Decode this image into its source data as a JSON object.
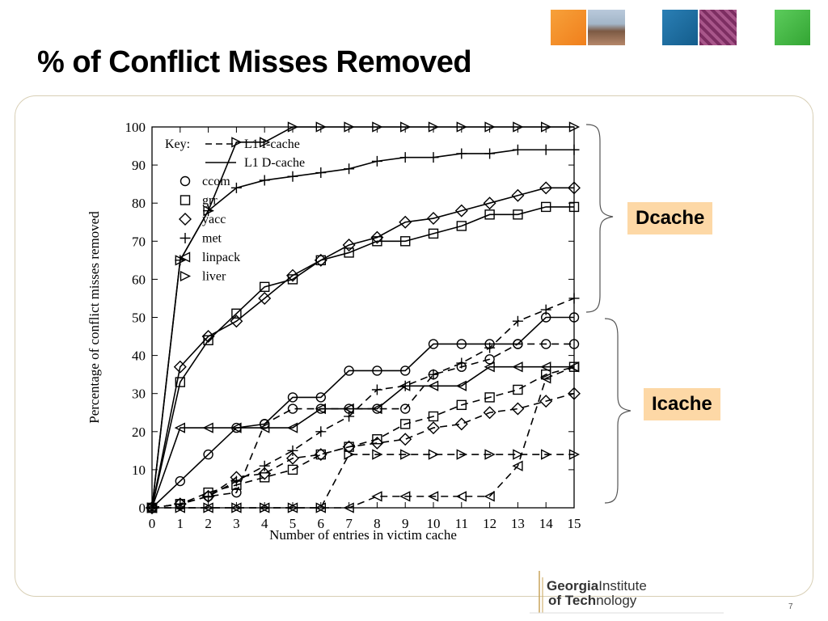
{
  "slide": {
    "title": "% of Conflict Misses Removed",
    "dcache_label": "Dcache",
    "icache_label": "Icache",
    "page_number": "7",
    "logo": {
      "line1_bold": "Georgia",
      "line1_light": "Institute",
      "line2_bold": "of Tech",
      "line2_light": "nology"
    }
  },
  "chart_data": {
    "type": "line",
    "xlabel": "Number of entries in victim cache",
    "ylabel": "Percentage of conflict misses removed",
    "x": [
      0,
      1,
      2,
      3,
      4,
      5,
      6,
      7,
      8,
      9,
      10,
      11,
      12,
      13,
      14,
      15
    ],
    "xlim": [
      0,
      15
    ],
    "ylim": [
      0,
      100
    ],
    "yticks": [
      0,
      10,
      20,
      30,
      40,
      50,
      60,
      70,
      80,
      90,
      100
    ],
    "grid": false,
    "legend_position": "top-left",
    "legend_key_title": "Key:",
    "legend_line_styles": [
      {
        "style": "dashed",
        "label": "L1 I-cache"
      },
      {
        "style": "solid",
        "label": "L1 D-cache"
      }
    ],
    "legend_markers": [
      {
        "marker": "circle",
        "label": "ccom"
      },
      {
        "marker": "square",
        "label": "grr"
      },
      {
        "marker": "diamond",
        "label": "yacc"
      },
      {
        "marker": "plus",
        "label": "met"
      },
      {
        "marker": "triangle-left",
        "label": "linpack"
      },
      {
        "marker": "triangle-right",
        "label": "liver"
      }
    ],
    "series": [
      {
        "marker": "triangle-right",
        "style": "solid",
        "values": [
          0,
          65,
          78,
          96,
          96,
          100,
          100,
          100,
          100,
          100,
          100,
          100,
          100,
          100,
          100,
          100
        ]
      },
      {
        "marker": "plus",
        "style": "solid",
        "values": [
          0,
          65,
          78,
          84,
          86,
          87,
          88,
          89,
          91,
          92,
          92,
          93,
          93,
          94,
          94,
          94
        ]
      },
      {
        "marker": "diamond",
        "style": "solid",
        "values": [
          0,
          37,
          45,
          49,
          55,
          61,
          65,
          69,
          71,
          75,
          76,
          78,
          80,
          82,
          84,
          84
        ]
      },
      {
        "marker": "square",
        "style": "solid",
        "values": [
          0,
          33,
          44,
          51,
          58,
          60,
          65,
          67,
          70,
          70,
          72,
          74,
          77,
          77,
          79,
          79
        ]
      },
      {
        "marker": "circle",
        "style": "solid",
        "values": [
          0,
          7,
          14,
          21,
          22,
          29,
          29,
          36,
          36,
          36,
          43,
          43,
          43,
          43,
          50,
          50
        ]
      },
      {
        "marker": "triangle-left",
        "style": "solid",
        "values": [
          0,
          21,
          21,
          21,
          21,
          21,
          26,
          26,
          26,
          32,
          32,
          32,
          37,
          37,
          37,
          37
        ]
      },
      {
        "marker": "plus",
        "style": "dashed",
        "values": [
          0,
          1,
          3,
          7,
          11,
          15,
          20,
          24,
          31,
          32,
          35,
          38,
          42,
          49,
          52,
          55
        ]
      },
      {
        "marker": "circle",
        "style": "dashed",
        "values": [
          0,
          1,
          3,
          4,
          22,
          26,
          26,
          26,
          26,
          26,
          35,
          37,
          39,
          43,
          43,
          43
        ]
      },
      {
        "marker": "square",
        "style": "dashed",
        "values": [
          0,
          1,
          4,
          6,
          8,
          10,
          14,
          16,
          18,
          22,
          24,
          27,
          29,
          31,
          35,
          37
        ]
      },
      {
        "marker": "diamond",
        "style": "dashed",
        "values": [
          0,
          1,
          3,
          8,
          9,
          13,
          14,
          16,
          17,
          18,
          21,
          22,
          25,
          26,
          28,
          30
        ]
      },
      {
        "marker": "triangle-right",
        "style": "dashed",
        "values": [
          0,
          0,
          0,
          0,
          0,
          0,
          0,
          14,
          14,
          14,
          14,
          14,
          14,
          14,
          14,
          14
        ]
      },
      {
        "marker": "triangle-left",
        "style": "dashed",
        "values": [
          0,
          0,
          0,
          0,
          0,
          0,
          0,
          0,
          3,
          3,
          3,
          3,
          3,
          11,
          34,
          37
        ]
      }
    ]
  }
}
